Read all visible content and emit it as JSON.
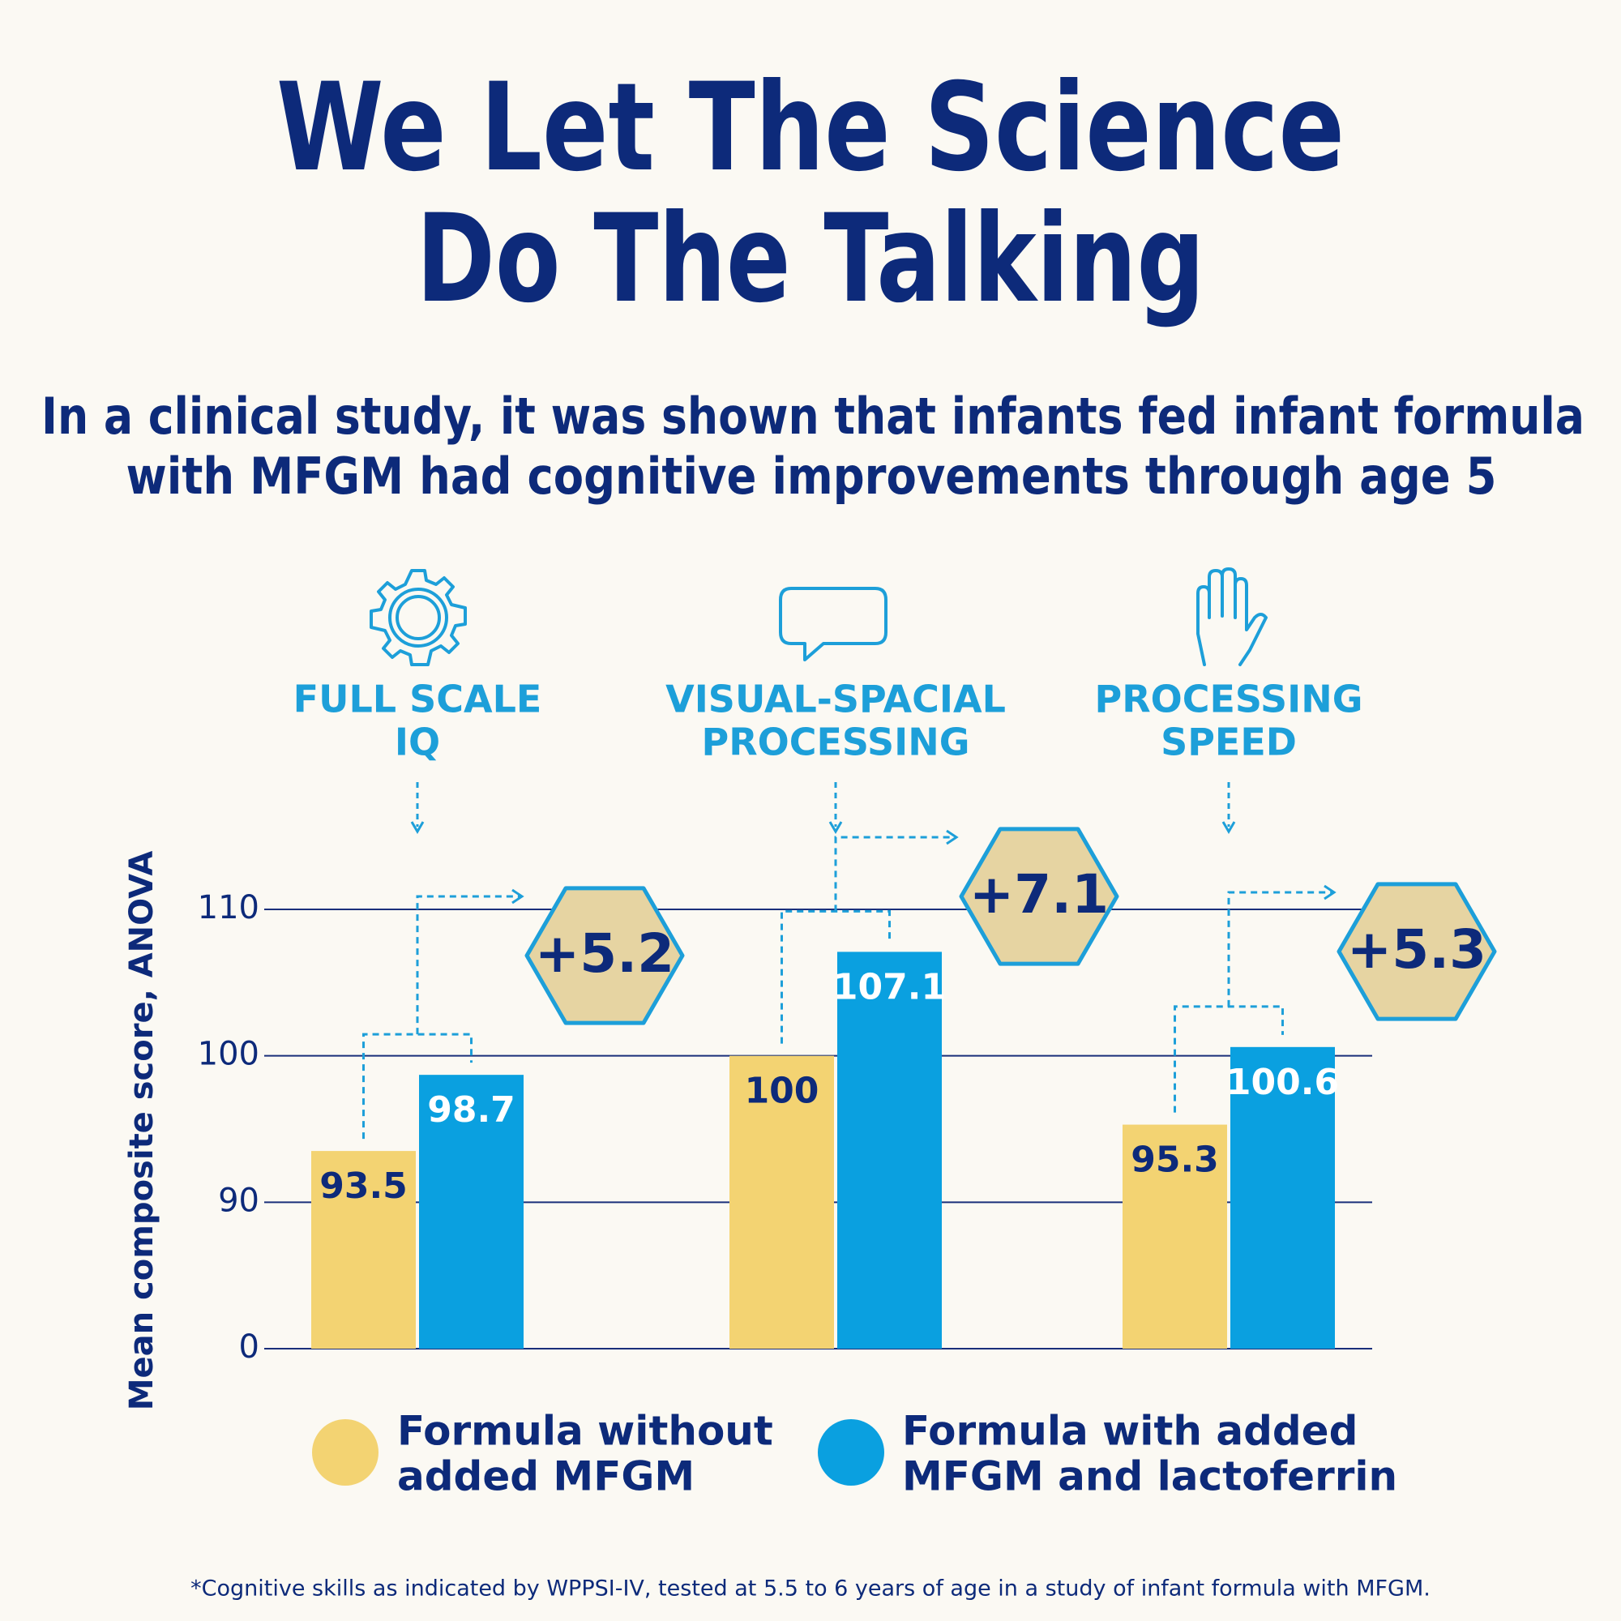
{
  "chart_data": {
    "type": "bar",
    "title": [
      "We Let The Science",
      "Do The Talking"
    ],
    "subtitle": [
      "In a clinical study, it was shown that infants fed infant formula",
      "with MFGM had cognitive improvements through age 5"
    ],
    "categories": [
      [
        "FULL SCALE",
        "IQ"
      ],
      [
        "VISUAL-SPACIAL",
        "PROCESSING"
      ],
      [
        "PROCESSING",
        "SPEED"
      ]
    ],
    "series": [
      {
        "name": [
          "Formula without",
          "added MFGM"
        ],
        "color": "#f3d372",
        "label_color": "#0d2a7a",
        "values": [
          93.5,
          100,
          95.3
        ]
      },
      {
        "name": [
          "Formula with added",
          "MFGM and lactoferrin"
        ],
        "color": "#0aa0e0",
        "label_color": "#ffffff",
        "values": [
          98.7,
          107.1,
          100.6
        ]
      }
    ],
    "annotations": [
      {
        "value": 5.2,
        "label": "+5.2"
      },
      {
        "value": 7.1,
        "label": "+7.1"
      },
      {
        "value": 5.3,
        "label": "+5.3"
      }
    ],
    "ylabel": "Mean composite score, ANOVA",
    "ylim": [
      0,
      110
    ],
    "yticks": [
      0,
      90,
      100,
      110
    ],
    "axis_break": [
      0,
      90
    ],
    "grid": true,
    "footnote": "*Cognitive skills as indicated by WPPSI-IV, tested at 5.5 to 6 years of age in a study of infant formula with MFGM."
  }
}
